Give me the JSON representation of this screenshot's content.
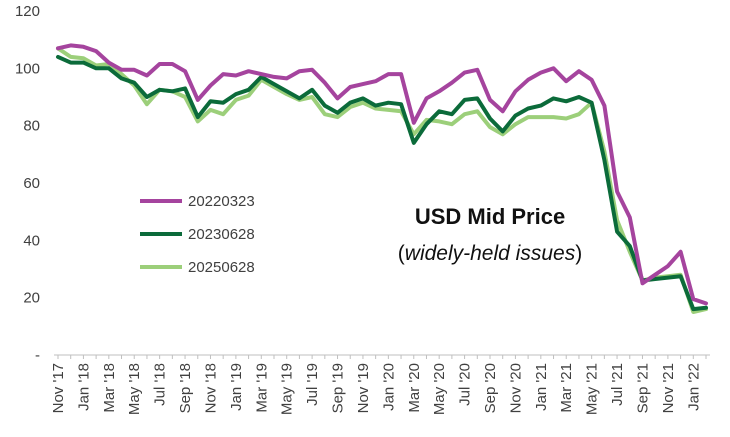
{
  "chart_data": {
    "type": "line",
    "title": "USD Mid Price",
    "subtitle": "widely-held issues",
    "subtitle_prefix": "(",
    "subtitle_suffix": ")",
    "xlabel": "",
    "ylabel": "",
    "ylim": [
      0,
      120
    ],
    "yticks": [
      0,
      20,
      40,
      60,
      80,
      100,
      120
    ],
    "ytick_labels": [
      "-",
      "20",
      "40",
      "60",
      "80",
      "100",
      "120"
    ],
    "grid": false,
    "legend_position": "left-middle",
    "x_tick_labels": [
      "Nov '17",
      "Jan '18",
      "Mar '18",
      "May '18",
      "Jul '18",
      "Sep '18",
      "Nov '18",
      "Jan '19",
      "Mar '19",
      "May '19",
      "Jul '19",
      "Sep '19",
      "Nov '19",
      "Jan '20",
      "Mar '20",
      "May '20",
      "Jul '20",
      "Sep '20",
      "Nov '20",
      "Jan '21",
      "Mar '21",
      "May '21",
      "Jul '21",
      "Sep '21",
      "Nov '21",
      "Jan '22"
    ],
    "x_tick_index": [
      0,
      2,
      4,
      6,
      8,
      10,
      12,
      14,
      16,
      18,
      20,
      22,
      24,
      26,
      28,
      30,
      32,
      34,
      36,
      38,
      40,
      42,
      44,
      46,
      48,
      50
    ],
    "series": [
      {
        "name": "20220323",
        "color": "#a5449e",
        "values": [
          107,
          108,
          107.5,
          106,
          102,
          99.5,
          99.5,
          97.5,
          101.5,
          101.5,
          99,
          89,
          94,
          98,
          97.5,
          99,
          98,
          97,
          96.5,
          99,
          99.5,
          95,
          89.5,
          93.5,
          94.5,
          95.5,
          98,
          98,
          81,
          89.5,
          92,
          95,
          98.5,
          99.5,
          89,
          85,
          92,
          96,
          98.5,
          100,
          95.5,
          99,
          96,
          87,
          57,
          48,
          25,
          28,
          31,
          36,
          19.5,
          18
        ]
      },
      {
        "name": "20230628",
        "color": "#0b6b3a",
        "values": [
          104,
          102,
          102,
          100,
          100,
          96.5,
          95,
          90,
          92.5,
          92,
          93,
          83,
          88.5,
          88,
          91,
          92.5,
          97,
          94.5,
          92,
          89.5,
          92.5,
          87,
          84.5,
          88,
          89.5,
          87,
          88,
          87.5,
          74,
          80.5,
          85,
          84,
          89,
          89.5,
          82.5,
          78,
          83.5,
          86,
          87,
          89.5,
          88.5,
          90,
          88,
          68,
          43,
          38,
          26,
          26.5,
          27,
          27.5,
          16,
          16.5
        ]
      },
      {
        "name": "20250628",
        "color": "#9ccf7a",
        "values": [
          107,
          104,
          103.5,
          101,
          101.5,
          98,
          94,
          87.5,
          92.5,
          92,
          90,
          81.5,
          85.5,
          84,
          89,
          90.5,
          96,
          93.5,
          91,
          89,
          90,
          84,
          83,
          86.5,
          88,
          86,
          85.5,
          85,
          77,
          82,
          81.5,
          80.5,
          84,
          85,
          79.5,
          77,
          80.5,
          83,
          83,
          83,
          82.5,
          84,
          88,
          71,
          47,
          36,
          26,
          27,
          27.5,
          28,
          15,
          16
        ]
      }
    ]
  }
}
